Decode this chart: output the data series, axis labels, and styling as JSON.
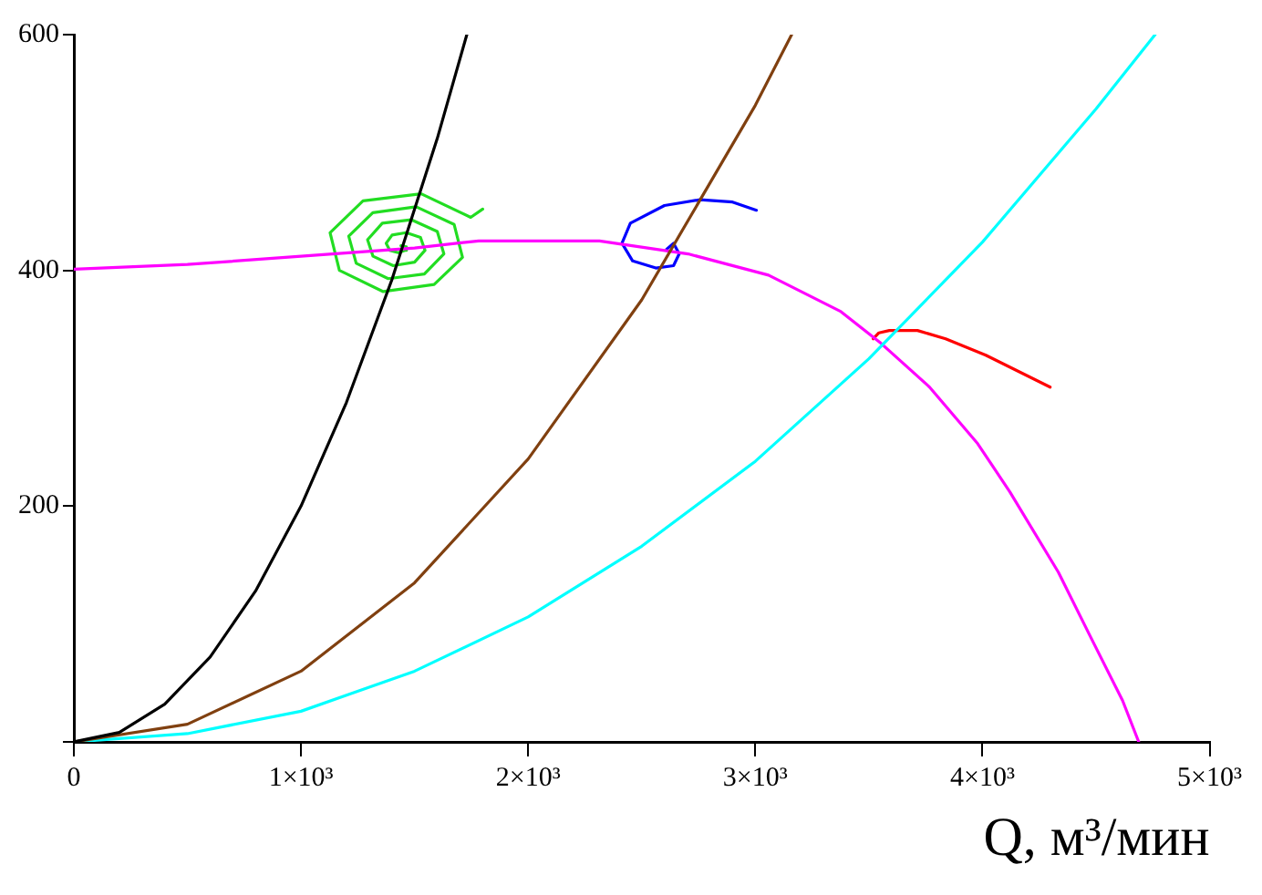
{
  "chart_data": {
    "type": "line",
    "xlabel": "Q, м³/мин",
    "xlim": [
      0,
      5000
    ],
    "ylim": [
      0,
      600
    ],
    "xticks": [
      0,
      {
        "value": 1000,
        "label": "1×10³"
      },
      {
        "value": 2000,
        "label": "2×10³"
      },
      {
        "value": 3000,
        "label": "3×10³"
      },
      {
        "value": 4000,
        "label": "4×10³"
      },
      {
        "value": 5000,
        "label": "5×10³"
      }
    ],
    "yticks": [
      {
        "value": 0,
        "label": null
      },
      200,
      400,
      600
    ],
    "grid": false,
    "legend": false,
    "marker": "none",
    "line_style": "solid",
    "series": [
      {
        "type": "line",
        "color": "#000000",
        "x": [
          0,
          200,
          400,
          600,
          800,
          1000,
          1200,
          1400,
          1600,
          1730
        ],
        "values": [
          0,
          8,
          32,
          72,
          128,
          200,
          288,
          392,
          512,
          600
        ]
      },
      {
        "type": "line",
        "color": "#804010",
        "x": [
          0,
          500,
          1000,
          1500,
          2000,
          2500,
          3000,
          3160
        ],
        "values": [
          0,
          15,
          60,
          135,
          240,
          375,
          540,
          600
        ]
      },
      {
        "type": "line",
        "color": "#00ffff",
        "x": [
          0,
          500,
          1000,
          1500,
          2000,
          2500,
          3000,
          3500,
          4000,
          4500,
          4760
        ],
        "values": [
          0,
          7,
          26,
          60,
          106,
          166,
          238,
          325,
          424,
          537,
          600
        ]
      },
      {
        "type": "line",
        "color": "#ff00ff",
        "x": [
          0,
          500,
          1000,
          1500,
          1782,
          2314,
          2704,
          3058,
          3377,
          3554,
          3767,
          3979,
          4121,
          4334,
          4476,
          4617,
          4688
        ],
        "values": [
          401,
          405,
          412,
          419,
          425,
          425,
          414,
          396,
          365,
          338,
          301,
          253,
          212,
          144,
          89,
          35,
          0
        ]
      },
      {
        "type": "line",
        "color": "#22dd22",
        "x": [
          1800,
          1747,
          1529,
          1273,
          1128,
          1169,
          1362,
          1586,
          1711,
          1674,
          1507,
          1316,
          1210,
          1243,
          1384,
          1543,
          1629,
          1600,
          1485,
          1358,
          1293,
          1317,
          1406,
          1500,
          1546,
          1526,
          1463,
          1401,
          1375,
          1391,
          1428,
          1458,
          1464,
          1440
        ],
        "values": [
          452,
          445,
          465,
          459,
          432,
          400,
          382,
          388,
          411,
          439,
          454,
          449,
          429,
          406,
          393,
          397,
          414,
          433,
          443,
          440,
          426,
          412,
          404,
          407,
          417,
          428,
          432,
          430,
          423,
          417,
          415,
          417,
          420,
          421
        ]
      },
      {
        "type": "line",
        "color": "#0000ff",
        "x": [
          2610,
          2640,
          2665,
          2640,
          2562,
          2460,
          2413,
          2450,
          2600,
          2757,
          2900,
          3005
        ],
        "values": [
          418,
          423,
          414,
          404,
          402,
          408,
          423,
          440,
          455,
          460,
          458,
          451
        ]
      },
      {
        "type": "line",
        "color": "#ff0000",
        "x": [
          3519,
          3544,
          3590,
          3714,
          3838,
          4015,
          4298
        ],
        "values": [
          342,
          347,
          349,
          349,
          342,
          328,
          301
        ]
      }
    ]
  }
}
